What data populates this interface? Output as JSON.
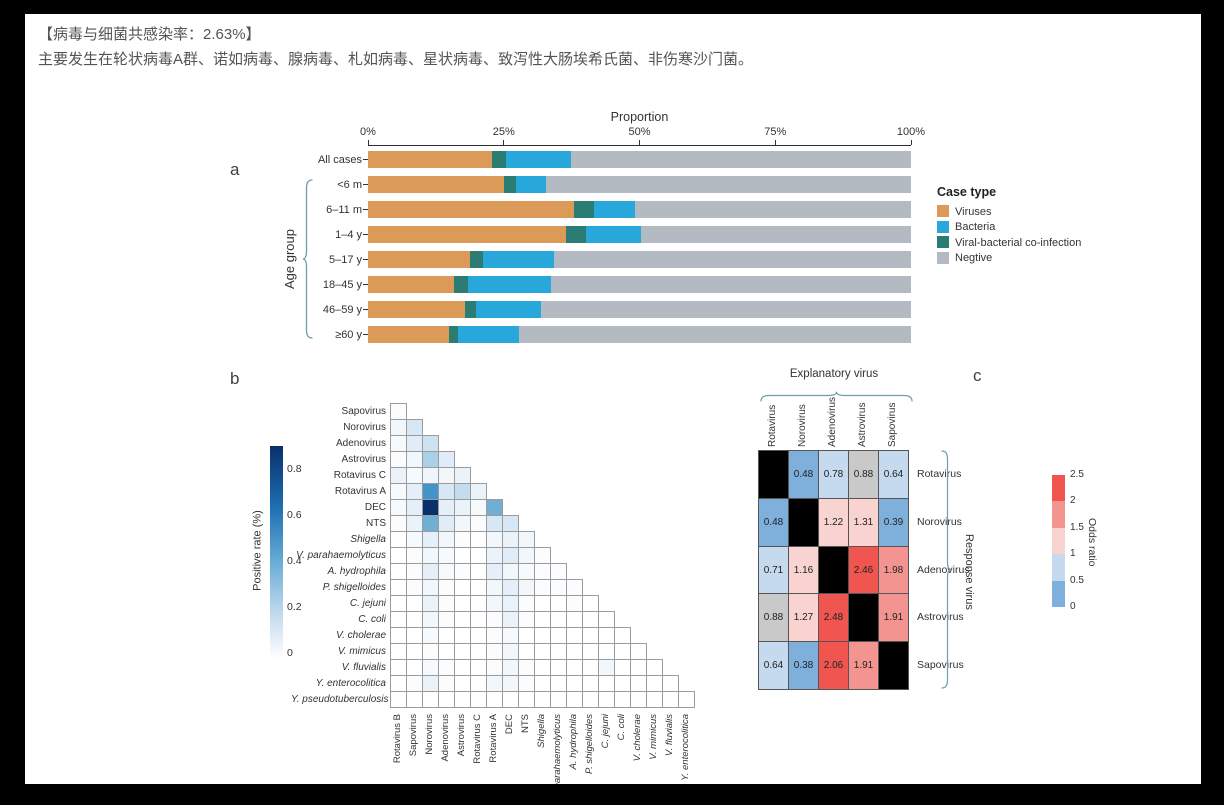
{
  "page": {
    "background": "#000000",
    "canvas": "#ffffff"
  },
  "header": {
    "line1": "【病毒与细菌共感染率：2.63%】",
    "line2": "主要发生在轮状病毒A群、诺如病毒、腺病毒、札如病毒、星状病毒、致泻性大肠埃希氏菌、非伤寒沙门菌。"
  },
  "figure": {
    "panel_a_label": "a",
    "panel_b_label": "b",
    "panel_c_label": "c"
  },
  "chart_data": [
    {
      "id": "panel-a",
      "type": "bar",
      "stacked": true,
      "orientation": "horizontal",
      "title": "Proportion",
      "x_ticks": [
        "0%",
        "25%",
        "50%",
        "75%",
        "100%"
      ],
      "xlim": [
        0,
        100
      ],
      "group_axis_label": "Age group",
      "categories": [
        "All cases",
        "<6 m",
        "6–11 m",
        "1–4 y",
        "5–17 y",
        "18–45 y",
        "46–59 y",
        "≥60 y"
      ],
      "series": [
        {
          "name": "Viruses",
          "color": "#DC9A58",
          "values": [
            22.8,
            25.1,
            38.0,
            36.4,
            18.7,
            15.9,
            17.9,
            15.0
          ]
        },
        {
          "name": "Viral-bacterial co-infection",
          "color": "#2B7D74",
          "values": [
            2.6,
            2.1,
            3.7,
            3.7,
            2.5,
            2.5,
            2.0,
            1.6
          ]
        },
        {
          "name": "Bacteria",
          "color": "#28A7DB",
          "values": [
            11.9,
            5.5,
            7.4,
            10.1,
            13.0,
            15.3,
            12.0,
            11.3
          ]
        },
        {
          "name": "Negtive",
          "color": "#B3BAC2",
          "values": [
            62.7,
            67.3,
            50.9,
            49.8,
            65.8,
            66.3,
            68.1,
            72.1
          ]
        }
      ],
      "legend": {
        "title": "Case type",
        "items": [
          {
            "label": "Viruses",
            "color": "#DC9A58"
          },
          {
            "label": "Bacteria",
            "color": "#28A7DB"
          },
          {
            "label": "Viral-bacterial co-infection",
            "color": "#2B7D74"
          },
          {
            "label": "Negtive",
            "color": "#B3BAC2"
          }
        ]
      }
    },
    {
      "id": "panel-b",
      "type": "heatmap",
      "shape": "lower-triangle",
      "colorbar": {
        "label": "Positive rate (%)",
        "ticks": [
          0.8,
          0.6,
          0.4,
          0.2,
          0
        ],
        "vmax": 0.9,
        "palette": "Blues"
      },
      "col_labels": [
        "Rotavirus B",
        "Sapovirus",
        "Norovirus",
        "Adenovirus",
        "Astrovirus",
        "Rotavirus C",
        "Rotavirus A",
        "DEC",
        "NTS",
        "Shigella",
        "V. parahaemolyticus",
        "A. hydrophila",
        "P. shigelloides",
        "C. jejuni",
        "C. coli",
        "V. cholerae",
        "V. mimicus",
        "V. fluvialis",
        "Y. enterocolitica"
      ],
      "row_labels": [
        "Sapovirus",
        "Norovirus",
        "Adenovirus",
        "Astrovirus",
        "Rotavirus C",
        "Rotavirus A",
        "DEC",
        "NTS",
        "Shigella",
        "V. parahaemolyticus",
        "A. hydrophila",
        "P. shigelloides",
        "C. jejuni",
        "C. coli",
        "V. cholerae",
        "V. mimicus",
        "V. fluvialis",
        "Y. enterocolitica",
        "Y. pseudotuberculosis"
      ],
      "row_italic_from": 8,
      "col_italic_from": 9,
      "values": [
        [
          0.02
        ],
        [
          0.05,
          0.15
        ],
        [
          0.03,
          0.12,
          0.18
        ],
        [
          0.02,
          0.05,
          0.3,
          0.12
        ],
        [
          0.08,
          0.03,
          0.06,
          0.05,
          0.08
        ],
        [
          0.03,
          0.1,
          0.55,
          0.15,
          0.22,
          0.08
        ],
        [
          0.03,
          0.1,
          0.9,
          0.1,
          0.08,
          0.03,
          0.45
        ],
        [
          0.02,
          0.08,
          0.45,
          0.12,
          0.05,
          0.02,
          0.15,
          0.15
        ],
        [
          0,
          0.03,
          0.1,
          0.05,
          0.02,
          0,
          0.05,
          0.08,
          0.05
        ],
        [
          0,
          0.02,
          0.05,
          0.03,
          0,
          0,
          0.08,
          0.12,
          0.05,
          0.02
        ],
        [
          0,
          0.02,
          0.1,
          0.03,
          0.02,
          0,
          0.1,
          0.05,
          0.03,
          0.02,
          0.02
        ],
        [
          0,
          0.02,
          0.05,
          0.02,
          0,
          0,
          0.05,
          0.1,
          0.05,
          0.02,
          0.02,
          0.02
        ],
        [
          0,
          0,
          0.08,
          0.02,
          0,
          0,
          0.05,
          0.08,
          0.02,
          0,
          0,
          0.02,
          0
        ],
        [
          0,
          0,
          0.05,
          0.02,
          0,
          0,
          0.02,
          0.08,
          0.02,
          0,
          0,
          0,
          0,
          0
        ],
        [
          0,
          0,
          0.03,
          0,
          0,
          0,
          0.02,
          0.03,
          0,
          0,
          0,
          0,
          0,
          0,
          0
        ],
        [
          0,
          0,
          0.02,
          0,
          0,
          0,
          0.02,
          0.05,
          0,
          0,
          0,
          0,
          0,
          0,
          0,
          0
        ],
        [
          0,
          0,
          0.03,
          0.02,
          0,
          0,
          0.02,
          0.05,
          0.02,
          0,
          0,
          0,
          0,
          0.05,
          0,
          0,
          0
        ],
        [
          0,
          0.02,
          0.08,
          0.02,
          0,
          0,
          0.05,
          0.05,
          0.02,
          0,
          0,
          0,
          0,
          0,
          0,
          0,
          0,
          0
        ],
        [
          0,
          0,
          0,
          0,
          0,
          0,
          0,
          0,
          0,
          0,
          0,
          0,
          0,
          0,
          0,
          0,
          0,
          0,
          0
        ]
      ]
    },
    {
      "id": "panel-c",
      "type": "heatmap",
      "top_label": "Explanatory virus",
      "right_label": "Response virus",
      "col_labels": [
        "Rotavirus",
        "Norovirus",
        "Adenovirus",
        "Astrovirus",
        "Sapovirus"
      ],
      "row_labels": [
        "Rotavirus",
        "Norovirus",
        "Adenovirus",
        "Astrovirus",
        "Sapovirus"
      ],
      "values": [
        [
          null,
          0.48,
          0.78,
          0.88,
          0.64
        ],
        [
          0.48,
          null,
          1.22,
          1.31,
          0.39
        ],
        [
          0.71,
          1.16,
          null,
          2.46,
          1.98
        ],
        [
          0.88,
          1.27,
          2.48,
          null,
          1.91
        ],
        [
          0.64,
          0.38,
          2.06,
          1.91,
          null
        ]
      ],
      "gray_cells": [
        [
          0,
          3
        ],
        [
          3,
          0
        ]
      ],
      "diagonal": "black",
      "colorbar": {
        "label": "Odds ratio",
        "ticks": [
          2.5,
          2,
          1.5,
          1,
          0.5,
          0
        ],
        "segment_colors": [
          "#F0564F",
          "#F49490",
          "#F9D3CF",
          "#C5DAEE",
          "#7FB0DC"
        ]
      }
    }
  ]
}
